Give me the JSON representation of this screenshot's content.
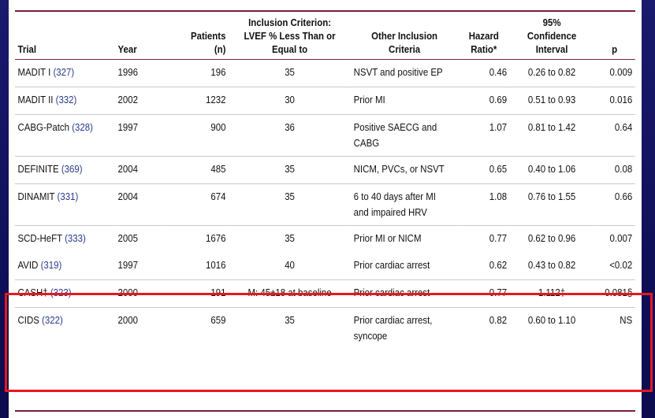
{
  "table": {
    "headers": {
      "trial": "Trial",
      "year": "Year",
      "patients_1": "Patients",
      "patients_2": "(n)",
      "lvef_1": "Inclusion Criterion:",
      "lvef_2": "LVEF % Less Than or",
      "lvef_3": "Equal to",
      "other_1": "Other Inclusion",
      "other_2": "Criteria",
      "hr_1": "Hazard",
      "hr_2": "Ratio*",
      "ci_1": "95%",
      "ci_2": "Confidence",
      "ci_3": "Interval",
      "p": "p"
    },
    "rows": [
      {
        "trial": "MADIT I",
        "ref": "(327)",
        "year": "1996",
        "patients": "196",
        "lvef": "35",
        "other_1": "NSVT and positive EP",
        "other_2": "",
        "hr": "0.46",
        "ci": "0.26 to 0.82",
        "p": "0.009"
      },
      {
        "trial": "MADIT II",
        "ref": "(332)",
        "year": "2002",
        "patients": "1232",
        "lvef": "30",
        "other_1": "Prior MI",
        "other_2": "",
        "hr": "0.69",
        "ci": "0.51 to 0.93",
        "p": "0.016"
      },
      {
        "trial": "CABG-Patch",
        "ref": "(328)",
        "year": "1997",
        "patients": "900",
        "lvef": "36",
        "other_1": "Positive SAECG and",
        "other_2": "CABG",
        "hr": "1.07",
        "ci": "0.81 to 1.42",
        "p": "0.64"
      },
      {
        "trial": "DEFINITE",
        "ref": "(369)",
        "year": "2004",
        "patients": "485",
        "lvef": "35",
        "other_1": "NICM, PVCs, or NSVT",
        "other_2": "",
        "hr": "0.65",
        "ci": "0.40 to 1.06",
        "p": "0.08"
      },
      {
        "trial": "DINAMIT",
        "ref": "(331)",
        "year": "2004",
        "patients": "674",
        "lvef": "35",
        "other_1": "6 to 40 days after MI",
        "other_2": "and impaired HRV",
        "hr": "1.08",
        "ci": "0.76 to 1.55",
        "p": "0.66"
      },
      {
        "trial": "SCD-HeFT",
        "ref": "(333)",
        "year": "2005",
        "patients": "1676",
        "lvef": "35",
        "other_1": "Prior MI or NICM",
        "other_2": "",
        "hr": "0.77",
        "ci": "0.62 to 0.96",
        "p": "0.007"
      },
      {
        "trial": "AVID",
        "ref": "(319)",
        "year": "1997",
        "patients": "1016",
        "lvef": "40",
        "other_1": "Prior cardiac arrest",
        "other_2": "",
        "hr": "0.62",
        "ci": "0.43 to 0.82",
        "p": "<0.02"
      },
      {
        "trial": "CASH†",
        "ref": "(323)",
        "year": "2000",
        "patients": "191",
        "lvef": "M: 45±18 at baseline",
        "other_1": "Prior cardiac arrest",
        "other_2": "",
        "hr": "0.77",
        "ci": "1.112‡",
        "p": "0.081§"
      },
      {
        "trial": "CIDS",
        "ref": "(322)",
        "year": "2000",
        "patients": "659",
        "lvef": "35",
        "other_1": "Prior cardiac arrest,",
        "other_2": "syncope",
        "hr": "0.82",
        "ci": "0.60 to 1.10",
        "p": "NS"
      }
    ]
  },
  "colors": {
    "background": "#12125e",
    "rule": "#7a1f3a",
    "reference_link": "#2a3a8c",
    "highlight_box": "#e8171e"
  }
}
